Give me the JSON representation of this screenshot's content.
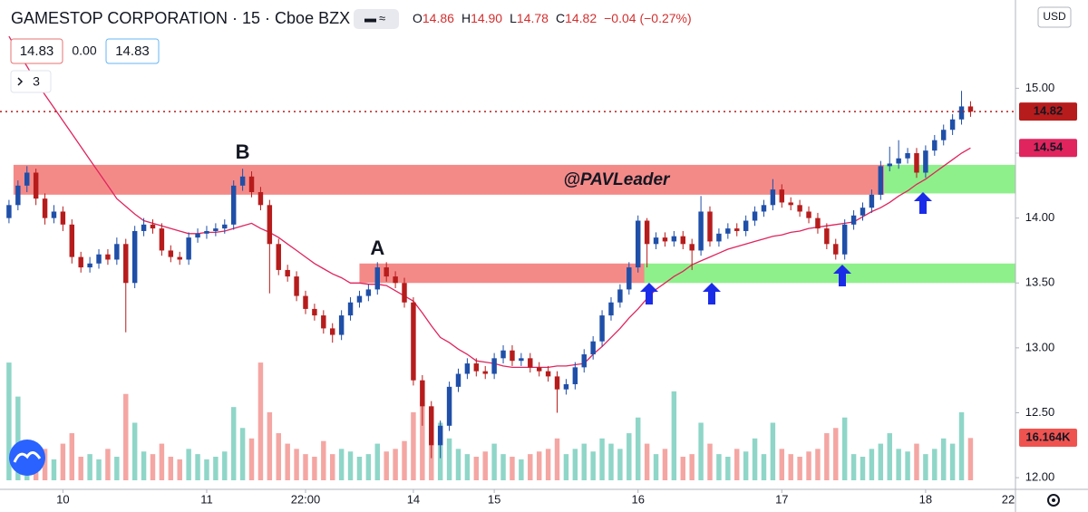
{
  "chart_data": {
    "type": "candlestick",
    "title": "GAMESTOP CORPORATION · 15 · Cboe BZX",
    "header": {
      "ohlc": [
        [
          "O",
          "14.86"
        ],
        [
          "H",
          "14.90"
        ],
        [
          "L",
          "14.78"
        ],
        [
          "C",
          "14.82"
        ]
      ],
      "change": "−0.04 (−0.27%)",
      "bid": "14.83",
      "spread": "0.00",
      "ask": "14.83",
      "indicators": "3"
    },
    "currency": "USD",
    "price_tags": {
      "last": "14.82",
      "ma": "14.54",
      "volume": "16.164K"
    },
    "xlim": [
      -1,
      112
    ],
    "ylim": [
      11.91,
      15.68
    ],
    "volume_ylim": [
      0,
      150
    ],
    "grid": false,
    "up_color": "#1f4fa8",
    "down_color": "#b71c1c",
    "volume_up_color": "#8fd6c8",
    "volume_down_color": "#f4a6a3",
    "ma_color": "#e0245e",
    "xticks": [
      {
        "value": 6,
        "label": "10"
      },
      {
        "value": 22,
        "label": "11"
      },
      {
        "value": 33,
        "label": "22:00"
      },
      {
        "value": 45,
        "label": "14"
      },
      {
        "value": 54,
        "label": "15"
      },
      {
        "value": 70,
        "label": "16"
      },
      {
        "value": 86,
        "label": "17"
      },
      {
        "value": 102,
        "label": "18"
      },
      {
        "value": 112,
        "label": "22"
      }
    ],
    "yticks": [
      {
        "value": 12,
        "label": "12.00"
      },
      {
        "value": 12.5,
        "label": "12.50"
      },
      {
        "value": 13,
        "label": "13.00"
      },
      {
        "value": 13.5,
        "label": "13.50"
      },
      {
        "value": 14,
        "label": "14.00"
      },
      {
        "value": 14.5,
        "label": "14.50"
      },
      {
        "value": 15,
        "label": "15.00"
      }
    ],
    "open": [
      14.0,
      14.1,
      14.25,
      14.35,
      14.15,
      14.0,
      14.05,
      13.95,
      13.7,
      13.62,
      13.65,
      13.72,
      13.68,
      13.8,
      13.5,
      13.9,
      13.95,
      13.92,
      13.75,
      13.7,
      13.68,
      13.85,
      13.88,
      13.9,
      13.92,
      13.95,
      14.25,
      14.32,
      14.2,
      14.1,
      13.8,
      13.6,
      13.55,
      13.4,
      13.3,
      13.25,
      13.15,
      13.1,
      13.25,
      13.35,
      13.4,
      13.45,
      13.62,
      13.55,
      13.5,
      13.35,
      12.75,
      12.55,
      12.25,
      12.4,
      12.7,
      12.8,
      12.88,
      12.82,
      12.8,
      12.92,
      12.98,
      12.9,
      12.92,
      12.85,
      12.82,
      12.78,
      12.68,
      12.72,
      12.85,
      12.95,
      13.05,
      13.25,
      13.35,
      13.45,
      13.62,
      13.98,
      13.8,
      13.85,
      13.82,
      13.86,
      13.8,
      13.75,
      14.05,
      13.82,
      13.88,
      13.92,
      13.9,
      13.98,
      14.05,
      14.1,
      14.22,
      14.12,
      14.1,
      14.05,
      14.0,
      13.92,
      13.8,
      13.72,
      13.95,
      14.02,
      14.08,
      14.18,
      14.4,
      14.42,
      14.46,
      14.5,
      14.35,
      14.52,
      14.6,
      14.68,
      14.76,
      14.86
    ],
    "high": [
      14.14,
      14.29,
      14.4,
      14.38,
      14.19,
      14.1,
      14.09,
      13.99,
      13.74,
      13.7,
      13.76,
      13.76,
      13.85,
      13.84,
      13.94,
      14.0,
      13.99,
      13.96,
      13.79,
      13.74,
      13.89,
      13.92,
      13.94,
      13.96,
      13.99,
      14.29,
      14.38,
      14.36,
      14.24,
      14.14,
      13.84,
      13.64,
      13.59,
      13.44,
      13.34,
      13.29,
      13.19,
      13.29,
      13.39,
      13.44,
      13.49,
      13.66,
      13.66,
      13.59,
      13.54,
      13.39,
      12.79,
      12.59,
      12.44,
      12.74,
      12.84,
      12.92,
      12.92,
      12.86,
      12.96,
      13.02,
      13.02,
      12.96,
      12.96,
      12.89,
      12.86,
      12.82,
      12.76,
      12.89,
      12.99,
      13.09,
      13.29,
      13.39,
      13.49,
      13.66,
      14.02,
      14.0,
      13.89,
      13.89,
      13.9,
      13.9,
      13.84,
      14.17,
      14.09,
      13.92,
      13.96,
      13.96,
      14.02,
      14.09,
      14.14,
      14.3,
      14.26,
      14.16,
      14.14,
      14.09,
      14.04,
      13.96,
      13.84,
      13.99,
      14.06,
      14.12,
      14.22,
      14.44,
      14.55,
      14.6,
      14.54,
      14.54,
      14.56,
      14.64,
      14.72,
      14.8,
      14.98,
      14.9
    ],
    "low": [
      13.96,
      14.06,
      14.2,
      14.1,
      13.95,
      13.96,
      13.9,
      13.65,
      13.58,
      13.58,
      13.61,
      13.64,
      13.64,
      13.12,
      13.46,
      13.86,
      13.88,
      13.71,
      13.66,
      13.64,
      13.64,
      13.81,
      13.84,
      13.86,
      13.88,
      13.91,
      14.21,
      14.16,
      14.06,
      13.42,
      13.56,
      13.51,
      13.36,
      13.26,
      13.21,
      13.11,
      13.04,
      13.06,
      13.21,
      13.31,
      13.36,
      13.41,
      13.51,
      13.46,
      13.31,
      12.71,
      12.4,
      12.15,
      12.15,
      12.36,
      12.66,
      12.76,
      12.78,
      12.76,
      12.76,
      12.88,
      12.86,
      12.86,
      12.81,
      12.78,
      12.74,
      12.5,
      12.64,
      12.68,
      12.81,
      12.91,
      13.01,
      13.21,
      13.31,
      13.41,
      13.58,
      13.62,
      13.76,
      13.78,
      13.78,
      13.76,
      13.6,
      13.71,
      13.78,
      13.78,
      13.84,
      13.86,
      13.86,
      13.94,
      14.01,
      14.06,
      14.08,
      14.06,
      14.01,
      13.96,
      13.88,
      13.76,
      13.68,
      13.68,
      13.91,
      13.98,
      14.04,
      14.14,
      14.36,
      14.38,
      14.42,
      14.31,
      14.31,
      14.48,
      14.56,
      14.64,
      14.72,
      14.78
    ],
    "close": [
      14.1,
      14.25,
      14.35,
      14.15,
      14.0,
      14.05,
      13.95,
      13.7,
      13.62,
      13.65,
      13.72,
      13.68,
      13.8,
      13.5,
      13.9,
      13.95,
      13.92,
      13.75,
      13.7,
      13.68,
      13.85,
      13.88,
      13.9,
      13.92,
      13.95,
      14.25,
      14.32,
      14.2,
      14.1,
      13.8,
      13.6,
      13.55,
      13.4,
      13.3,
      13.25,
      13.15,
      13.1,
      13.25,
      13.35,
      13.4,
      13.45,
      13.62,
      13.55,
      13.5,
      13.35,
      12.75,
      12.55,
      12.25,
      12.4,
      12.7,
      12.8,
      12.88,
      12.82,
      12.8,
      12.92,
      12.98,
      12.9,
      12.92,
      12.85,
      12.82,
      12.78,
      12.68,
      12.72,
      12.85,
      12.95,
      13.05,
      13.25,
      13.35,
      13.45,
      13.62,
      13.98,
      13.8,
      13.85,
      13.82,
      13.86,
      13.8,
      13.75,
      14.05,
      13.82,
      13.88,
      13.92,
      13.9,
      13.98,
      14.05,
      14.1,
      14.22,
      14.12,
      14.1,
      14.05,
      14.0,
      13.92,
      13.8,
      13.72,
      13.95,
      14.02,
      14.08,
      14.18,
      14.4,
      14.42,
      14.46,
      14.5,
      14.35,
      14.52,
      14.6,
      14.68,
      14.76,
      14.86,
      14.82
    ],
    "volume": [
      45,
      32,
      14,
      10,
      12,
      8,
      14,
      18,
      9,
      10,
      8,
      12,
      9,
      33,
      22,
      11,
      10,
      14,
      9,
      8,
      12,
      10,
      8,
      9,
      11,
      28,
      20,
      16,
      45,
      26,
      18,
      14,
      12,
      10,
      9,
      15,
      10,
      12,
      11,
      9,
      10,
      14,
      11,
      12,
      15,
      26,
      30,
      28,
      22,
      16,
      12,
      10,
      9,
      11,
      14,
      10,
      9,
      8,
      10,
      11,
      12,
      16,
      10,
      12,
      14,
      11,
      16,
      14,
      12,
      18,
      24,
      14,
      10,
      12,
      34,
      9,
      10,
      22,
      14,
      10,
      9,
      12,
      11,
      16,
      10,
      22,
      12,
      10,
      9,
      11,
      12,
      18,
      20,
      24,
      10,
      9,
      12,
      14,
      18,
      12,
      11,
      14,
      10,
      12,
      16,
      14,
      26,
      16.164
    ],
    "ma": [
      15.4,
      15.28,
      15.17,
      15.05,
      14.95,
      14.85,
      14.75,
      14.65,
      14.55,
      14.45,
      14.35,
      14.25,
      14.15,
      14.09,
      14.03,
      13.98,
      13.96,
      13.94,
      13.92,
      13.9,
      13.88,
      13.88,
      13.89,
      13.89,
      13.9,
      13.92,
      13.94,
      13.96,
      13.92,
      13.89,
      13.85,
      13.8,
      13.75,
      13.7,
      13.65,
      13.61,
      13.57,
      13.54,
      13.5,
      13.5,
      13.49,
      13.49,
      13.48,
      13.44,
      13.4,
      13.36,
      13.27,
      13.17,
      13.08,
      13.04,
      12.99,
      12.95,
      12.9,
      12.89,
      12.88,
      12.86,
      12.85,
      12.85,
      12.85,
      12.85,
      12.85,
      12.86,
      12.86,
      12.87,
      12.88,
      12.95,
      13.01,
      13.08,
      13.15,
      13.23,
      13.3,
      13.38,
      13.45,
      13.5,
      13.55,
      13.59,
      13.64,
      13.67,
      13.7,
      13.73,
      13.76,
      13.78,
      13.8,
      13.82,
      13.84,
      13.86,
      13.87,
      13.89,
      13.9,
      13.92,
      13.93,
      13.94,
      13.95,
      13.96,
      13.97,
      14.01,
      14.05,
      14.08,
      14.12,
      14.17,
      14.21,
      14.26,
      14.3,
      14.35,
      14.4,
      14.45,
      14.5,
      14.54
    ],
    "zones": [
      {
        "x": [
          0.5,
          97.4
        ],
        "y": [
          14.18,
          14.41
        ],
        "color": "#f48a88"
      },
      {
        "x": [
          39,
          71.2
        ],
        "y": [
          13.5,
          13.65
        ],
        "color": "#f48a88"
      },
      {
        "x": [
          70.7,
          112
        ],
        "y": [
          13.5,
          13.65
        ],
        "color": "#8ef08a"
      },
      {
        "x": [
          97.4,
          112
        ],
        "y": [
          14.19,
          14.41
        ],
        "color": "#8ef08a"
      }
    ],
    "annotations": [
      {
        "text": "B",
        "x": 26,
        "y": 14.5,
        "color": "#3f3fbf"
      },
      {
        "text": "A",
        "x": 41,
        "y": 13.76,
        "color": "#3f3fbf"
      },
      {
        "text": "@PAVLeader",
        "x": 67.6,
        "y": 14.29,
        "color": "#111111"
      }
    ]
  }
}
